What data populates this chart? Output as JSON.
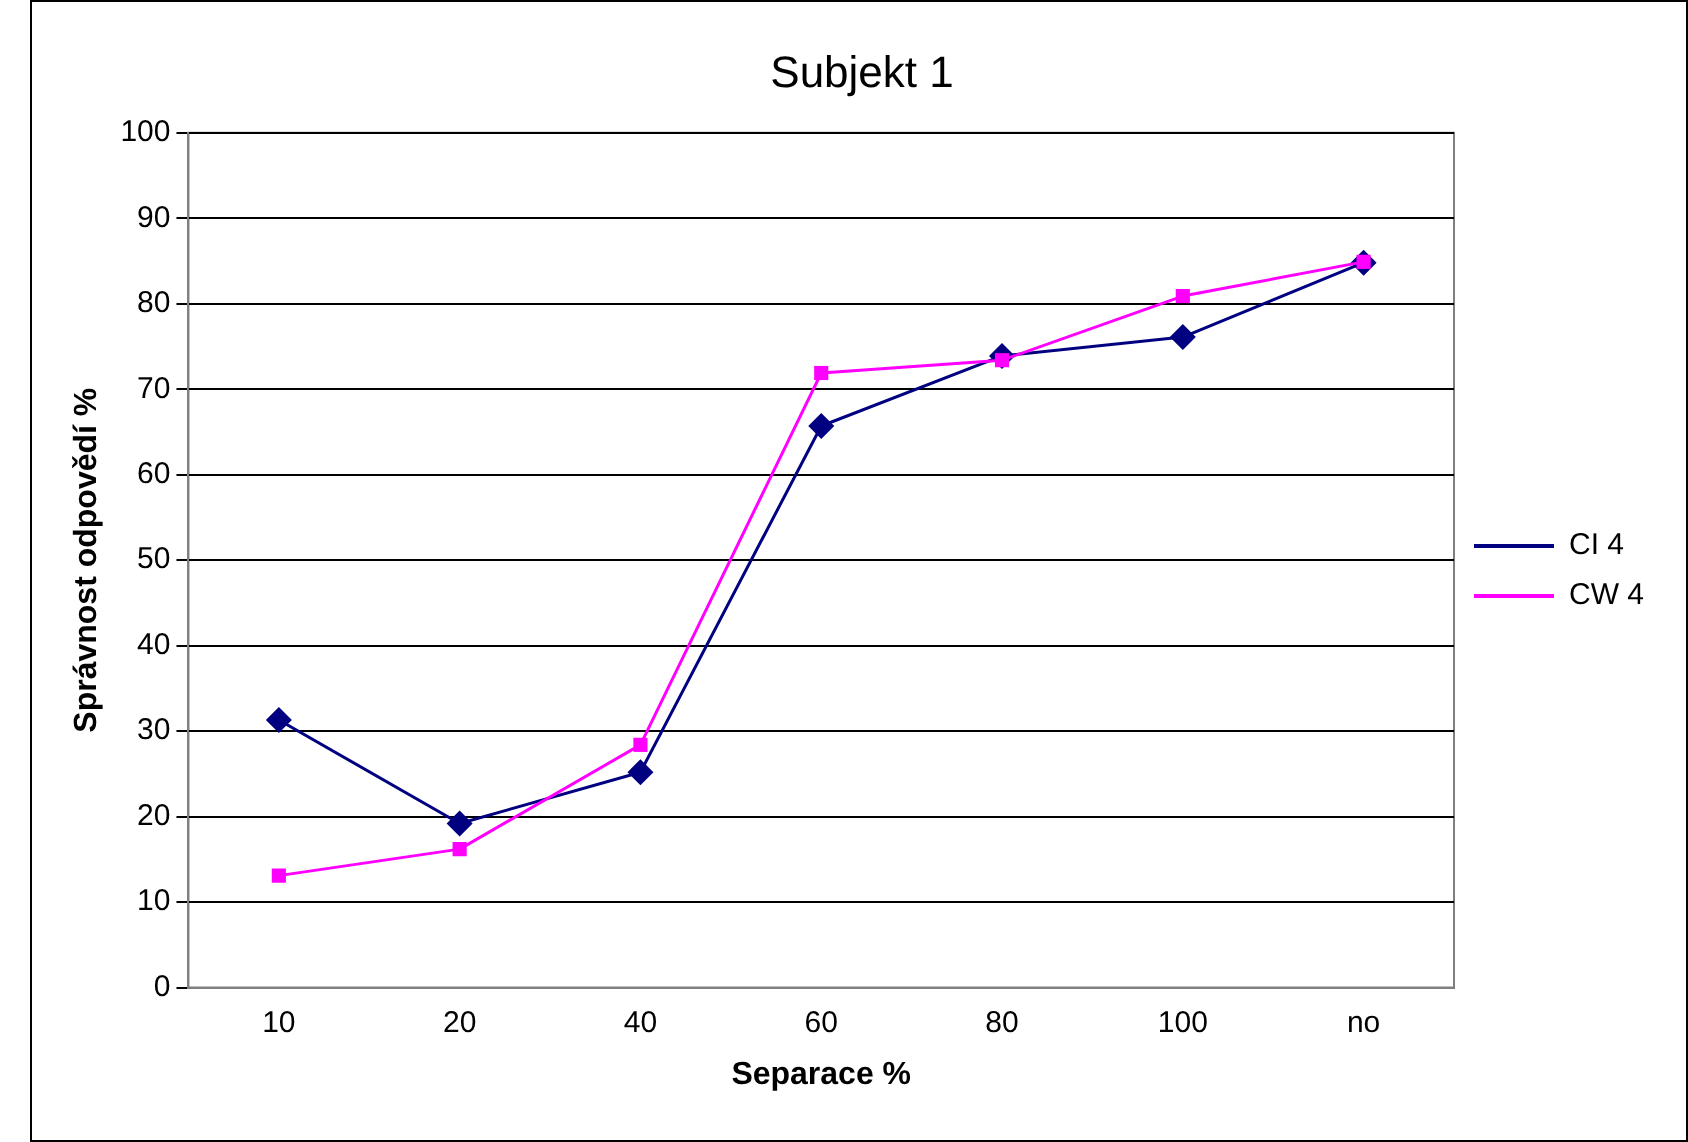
{
  "chart_data": {
    "type": "line",
    "title": "Subjekt 1",
    "xlabel": "Separace %",
    "ylabel": "Správnost odpovědí %",
    "categories": [
      "10",
      "20",
      "40",
      "60",
      "80",
      "100",
      "no"
    ],
    "series": [
      {
        "name": "CI 4",
        "color": "#000080",
        "values": [
          31.3,
          19.2,
          25.2,
          65.7,
          73.9,
          76.1,
          84.8
        ],
        "marker": "diamond"
      },
      {
        "name": "CW 4",
        "color": "#ff00ff",
        "values": [
          13.1,
          16.2,
          28.4,
          71.9,
          73.4,
          80.9,
          84.9
        ],
        "marker": "square"
      }
    ],
    "ylim": [
      0,
      100
    ],
    "yticks": [
      0,
      10,
      20,
      30,
      40,
      50,
      60,
      70,
      80,
      90,
      100
    ],
    "grid": "y",
    "legend": "right",
    "line_style": "solid"
  }
}
